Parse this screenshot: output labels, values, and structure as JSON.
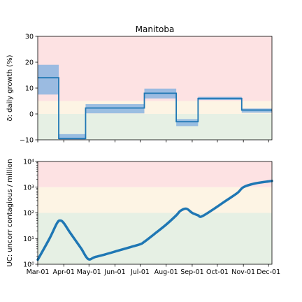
{
  "chart_data": [
    {
      "type": "line",
      "title": "Manitoba",
      "ylabel": "δ: daily growth (%)",
      "ylim": [
        -10,
        30
      ],
      "yticks": [
        "30",
        "20",
        "10",
        "0",
        "−10"
      ],
      "ytick_values": [
        30,
        20,
        10,
        0,
        -10
      ],
      "bands": [
        {
          "from": -10,
          "to": 0,
          "color": "#e6f0e4"
        },
        {
          "from": 0,
          "to": 5,
          "color": "#fdf4e4"
        },
        {
          "from": 5,
          "to": 30,
          "color": "#fde2e3"
        }
      ],
      "series": [
        {
          "line_color": "#1f77b4",
          "fill_color": "#8ab4e0",
          "segments": [
            {
              "x0": "2020-03-01",
              "x1": "2020-03-26",
              "value": 14,
              "lo": 7.5,
              "hi": 19
            },
            {
              "x0": "2020-03-26",
              "x1": "2020-04-27",
              "value": -9.5,
              "lo": -10,
              "hi": -7.8
            },
            {
              "x0": "2020-04-27",
              "x1": "2020-07-06",
              "value": 2.3,
              "lo": 0.2,
              "hi": 3.8
            },
            {
              "x0": "2020-07-06",
              "x1": "2020-08-13",
              "value": 8,
              "lo": 6,
              "hi": 9.8
            },
            {
              "x0": "2020-08-13",
              "x1": "2020-09-08",
              "value": -3,
              "lo": -4.7,
              "hi": -2
            },
            {
              "x0": "2020-09-08",
              "x1": "2020-10-30",
              "value": 6,
              "lo": 5.4,
              "hi": 6.6
            },
            {
              "x0": "2020-10-30",
              "x1": "2020-12-05",
              "value": 1.5,
              "lo": 0.5,
              "hi": 2.1
            }
          ]
        }
      ]
    },
    {
      "type": "line",
      "ylabel": "UC: uncorr contagious / million",
      "yscale": "log",
      "ylim": [
        1,
        10000
      ],
      "yticks": [
        "10⁴",
        "10³",
        "10²",
        "10¹",
        "10⁰"
      ],
      "ytick_values": [
        10000,
        1000,
        100,
        10,
        1
      ],
      "xticks": [
        "Mar-01",
        "Apr-01",
        "May-01",
        "Jun-01",
        "Jul-01",
        "Aug-01",
        "Sep-01",
        "Oct-01",
        "Nov-01",
        "Dec-01"
      ],
      "xtick_values": [
        "2020-03-01",
        "2020-04-01",
        "2020-05-01",
        "2020-06-01",
        "2020-07-01",
        "2020-08-01",
        "2020-09-01",
        "2020-10-01",
        "2020-11-01",
        "2020-12-01"
      ],
      "xlim": [
        "2020-03-01",
        "2020-12-05"
      ],
      "bands": [
        {
          "from": 1,
          "to": 100,
          "color": "#e6f0e4"
        },
        {
          "from": 100,
          "to": 1000,
          "color": "#fdf4e4"
        },
        {
          "from": 1000,
          "to": 10000,
          "color": "#fde2e3"
        }
      ],
      "series": [
        {
          "line_color": "#1f77b4",
          "x": [
            "2020-03-01",
            "2020-03-15",
            "2020-03-24",
            "2020-03-28",
            "2020-04-01",
            "2020-04-08",
            "2020-04-15",
            "2020-04-22",
            "2020-04-30",
            "2020-05-08",
            "2020-05-20",
            "2020-06-05",
            "2020-06-20",
            "2020-07-01",
            "2020-07-06",
            "2020-07-20",
            "2020-08-01",
            "2020-08-13",
            "2020-08-18",
            "2020-08-25",
            "2020-09-01",
            "2020-09-08",
            "2020-09-12",
            "2020-09-25",
            "2020-10-10",
            "2020-10-25",
            "2020-11-01",
            "2020-11-15",
            "2020-12-05"
          ],
          "y": [
            1.5,
            10,
            40,
            50,
            40,
            18,
            8.5,
            4,
            1.6,
            1.9,
            2.4,
            3.4,
            4.7,
            6,
            7.5,
            17,
            35,
            80,
            120,
            145,
            100,
            80,
            72,
            130,
            280,
            600,
            1000,
            1400,
            1750
          ]
        }
      ]
    }
  ]
}
